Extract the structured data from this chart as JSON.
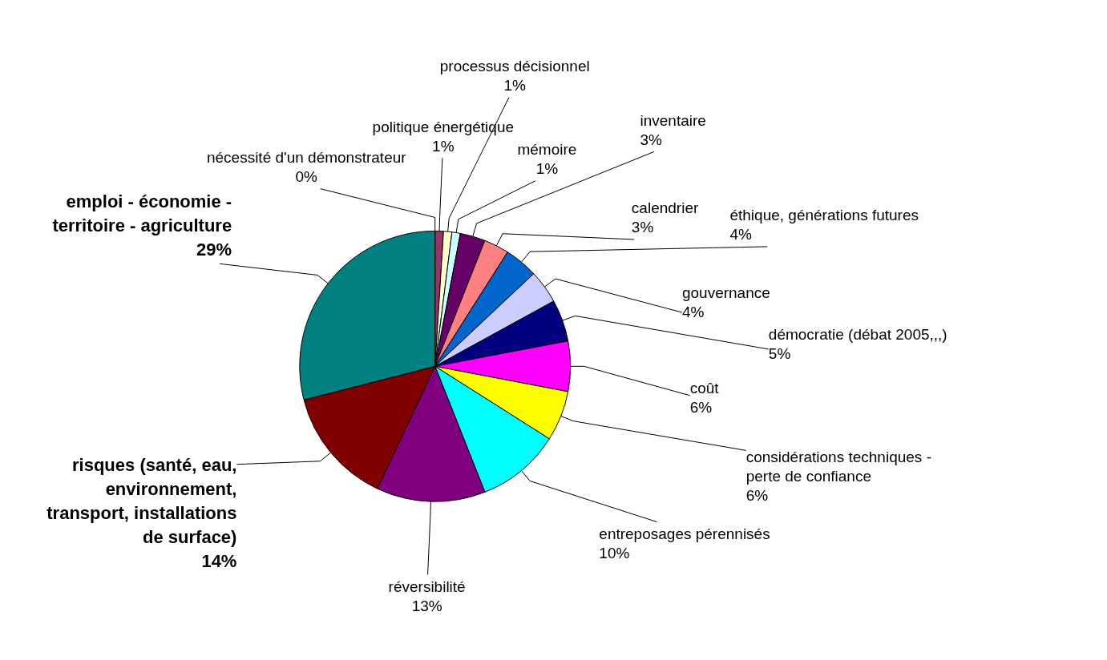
{
  "chart_data": {
    "type": "pie",
    "categories": [
      "nécessité d'un démonstrateur",
      "politique énergétique",
      "processus décisionnel",
      "mémoire",
      "inventaire",
      "calendrier",
      "éthique, générations futures",
      "gouvernance",
      "démocratie (débat 2005,,,)",
      "coût",
      "considérations techniques - perte de confiance",
      "entreposages pérennisés",
      "réversibilité",
      "risques (santé, eau, environnement, transport, installations de surface)",
      "emploi - économie - territoire - agriculture"
    ],
    "values": [
      0,
      1,
      1,
      1,
      3,
      3,
      4,
      4,
      5,
      6,
      6,
      10,
      13,
      14,
      29
    ],
    "value_labels": [
      "0%",
      "1%",
      "1%",
      "1%",
      "3%",
      "3%",
      "4%",
      "4%",
      "5%",
      "6%",
      "6%",
      "10%",
      "13%",
      "14%",
      "29%"
    ],
    "colors": [
      "#9999ff",
      "#993366",
      "#ffffcc",
      "#ccffff",
      "#660066",
      "#ff8080",
      "#0066cc",
      "#ccccff",
      "#000080",
      "#ff00ff",
      "#ffff00",
      "#00ffff",
      "#800080",
      "#800000",
      "#008080"
    ],
    "legend": false
  }
}
